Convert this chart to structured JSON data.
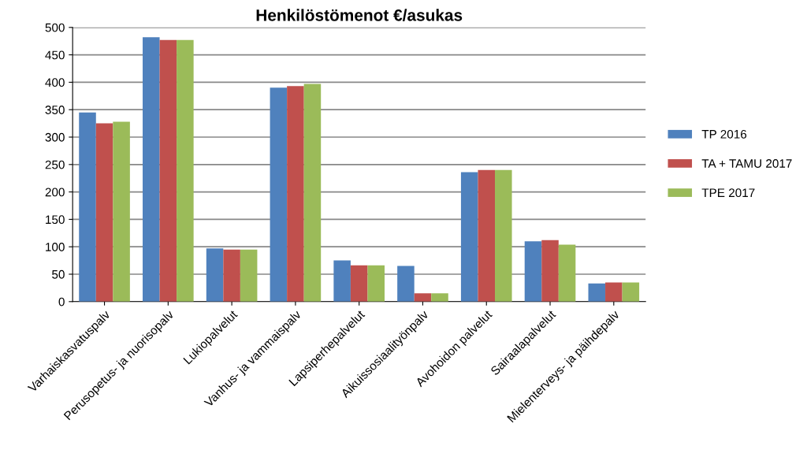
{
  "chart_data": {
    "type": "bar",
    "title": "Henkilöstömenot €/asukas",
    "categories": [
      "Varhaiskasvatuspalv",
      "Perusopetus- ja nuorisopalv",
      "Lukiopalvelut",
      "Vanhus- ja vammaispalv",
      "Lapsiperhepalvelut",
      "Aikuissosiaalityönpalv",
      "Avohoidon palvelut",
      "Sairaalapalvelut",
      "Mielenterveys- ja päihdepalv"
    ],
    "series": [
      {
        "name": "TP 2016",
        "color": "#4f81bd",
        "values": [
          345,
          482,
          97,
          390,
          75,
          65,
          236,
          110,
          33
        ]
      },
      {
        "name": "TA + TAMU 2017",
        "color": "#c0504d",
        "values": [
          325,
          477,
          95,
          393,
          66,
          15,
          240,
          112,
          35
        ]
      },
      {
        "name": "TPE 2017",
        "color": "#9bbb59",
        "values": [
          328,
          477,
          95,
          397,
          66,
          15,
          240,
          104,
          35
        ]
      }
    ],
    "ylim": [
      0,
      500
    ],
    "yticks": [
      0,
      50,
      100,
      150,
      200,
      250,
      300,
      350,
      400,
      450,
      500
    ],
    "grid": "y",
    "legend": "right"
  }
}
